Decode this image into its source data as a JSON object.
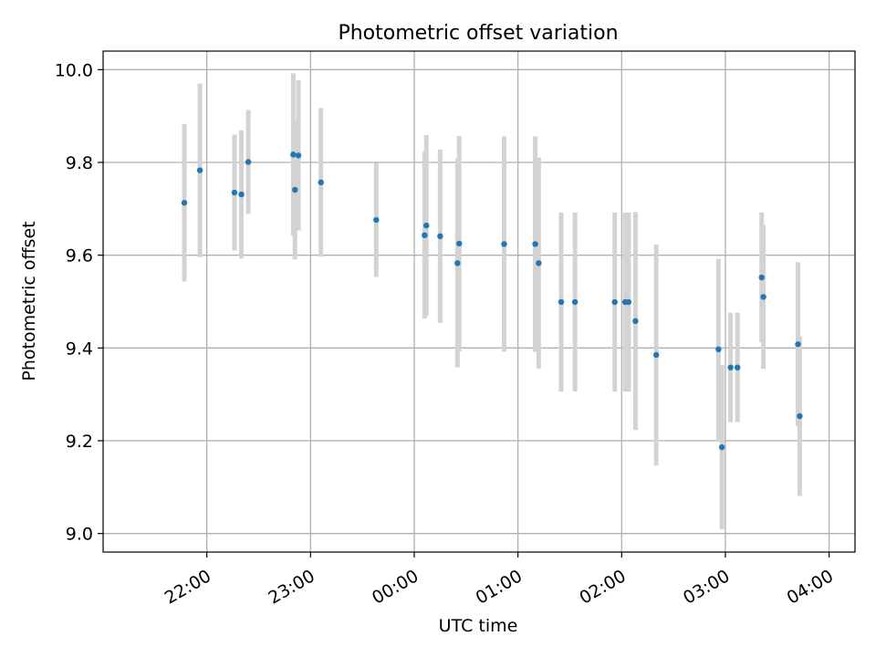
{
  "chart_data": {
    "type": "scatter",
    "title": "Photometric offset variation",
    "xlabel": "UTC time",
    "ylabel": "Photometric offset",
    "x_axis": "time (minutes after 21:00 UTC, spans midnight)",
    "x_ticks": [
      "22:00",
      "23:00",
      "00:00",
      "01:00",
      "02:00",
      "03:00",
      "04:00"
    ],
    "y_ticks": [
      "9.0",
      "9.2",
      "9.4",
      "9.6",
      "9.8",
      "10.0"
    ],
    "ylim": [
      8.96,
      10.04
    ],
    "grid": true,
    "colors": {
      "marker": "#1f77b4",
      "errorbar": "#d3d3d3",
      "grid": "#b0b0b0"
    },
    "points": [
      {
        "time": "21:47",
        "y": 9.713,
        "err": 0.17
      },
      {
        "time": "21:56",
        "y": 9.783,
        "err": 0.187
      },
      {
        "time": "22:16",
        "y": 9.735,
        "err": 0.125
      },
      {
        "time": "22:20",
        "y": 9.731,
        "err": 0.138
      },
      {
        "time": "22:24",
        "y": 9.801,
        "err": 0.112
      },
      {
        "time": "22:50",
        "y": 9.817,
        "err": 0.175
      },
      {
        "time": "22:51",
        "y": 9.741,
        "err": 0.15
      },
      {
        "time": "22:53",
        "y": 9.815,
        "err": 0.162
      },
      {
        "time": "23:06",
        "y": 9.757,
        "err": 0.16
      },
      {
        "time": "23:38",
        "y": 9.676,
        "err": 0.123
      },
      {
        "time": "00:06",
        "y": 9.643,
        "err": 0.18
      },
      {
        "time": "00:07",
        "y": 9.664,
        "err": 0.195
      },
      {
        "time": "00:15",
        "y": 9.641,
        "err": 0.187
      },
      {
        "time": "00:25",
        "y": 9.583,
        "err": 0.225
      },
      {
        "time": "00:26",
        "y": 9.625,
        "err": 0.232
      },
      {
        "time": "00:52",
        "y": 9.624,
        "err": 0.232
      },
      {
        "time": "01:10",
        "y": 9.624,
        "err": 0.232
      },
      {
        "time": "01:12",
        "y": 9.583,
        "err": 0.227
      },
      {
        "time": "01:25",
        "y": 9.499,
        "err": 0.193
      },
      {
        "time": "01:33",
        "y": 9.499,
        "err": 0.193
      },
      {
        "time": "01:56",
        "y": 9.499,
        "err": 0.193
      },
      {
        "time": "02:02",
        "y": 9.499,
        "err": 0.193
      },
      {
        "time": "02:04",
        "y": 9.499,
        "err": 0.193
      },
      {
        "time": "02:08",
        "y": 9.458,
        "err": 0.235
      },
      {
        "time": "02:20",
        "y": 9.385,
        "err": 0.238
      },
      {
        "time": "02:56",
        "y": 9.397,
        "err": 0.195
      },
      {
        "time": "02:58",
        "y": 9.186,
        "err": 0.177
      },
      {
        "time": "03:03",
        "y": 9.358,
        "err": 0.118
      },
      {
        "time": "03:07",
        "y": 9.358,
        "err": 0.118
      },
      {
        "time": "03:21",
        "y": 9.552,
        "err": 0.14
      },
      {
        "time": "03:22",
        "y": 9.51,
        "err": 0.155
      },
      {
        "time": "03:42",
        "y": 9.408,
        "err": 0.177
      },
      {
        "time": "03:43",
        "y": 9.253,
        "err": 0.172
      }
    ]
  }
}
